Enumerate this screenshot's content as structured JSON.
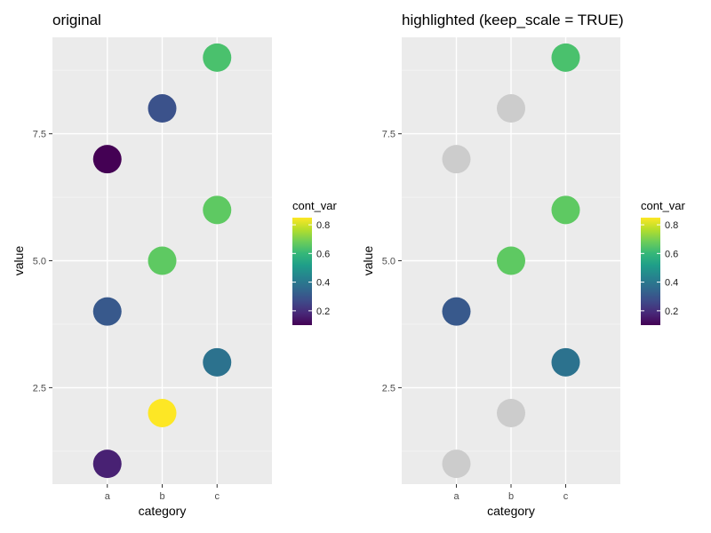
{
  "chart_data": [
    {
      "type": "scatter",
      "title": "original",
      "xlabel": "category",
      "ylabel": "value",
      "categories": [
        "a",
        "b",
        "c"
      ],
      "yticks": [
        2.5,
        5.0,
        7.5
      ],
      "ytick_labels": [
        "2.5",
        "5.0",
        "7.5"
      ],
      "ylim": [
        0.6,
        9.4
      ],
      "grid": true,
      "color_var": "cont_var",
      "legend": {
        "title": "cont_var",
        "position": "right",
        "ticks": [
          0.2,
          0.4,
          0.6,
          0.8
        ],
        "tick_labels": [
          "0.2",
          "0.4",
          "0.6",
          "0.8"
        ],
        "range": [
          0.1,
          0.85
        ]
      },
      "points": [
        {
          "x": "a",
          "y": 1,
          "color_value": 0.15,
          "color": "#482173"
        },
        {
          "x": "a",
          "y": 4,
          "color_value": 0.37,
          "color": "#38598C"
        },
        {
          "x": "a",
          "y": 7,
          "color_value": 0.1,
          "color": "#440154"
        },
        {
          "x": "b",
          "y": 2,
          "color_value": 0.85,
          "color": "#FDE725"
        },
        {
          "x": "b",
          "y": 5,
          "color_value": 0.67,
          "color": "#5EC962"
        },
        {
          "x": "b",
          "y": 8,
          "color_value": 0.35,
          "color": "#3B528B"
        },
        {
          "x": "c",
          "y": 3,
          "color_value": 0.45,
          "color": "#2C728E"
        },
        {
          "x": "c",
          "y": 6,
          "color_value": 0.66,
          "color": "#5EC962"
        },
        {
          "x": "c",
          "y": 9,
          "color_value": 0.63,
          "color": "#4AC16D"
        }
      ]
    },
    {
      "type": "scatter",
      "title": "highlighted (keep_scale = TRUE)",
      "xlabel": "category",
      "ylabel": "value",
      "categories": [
        "a",
        "b",
        "c"
      ],
      "yticks": [
        2.5,
        5.0,
        7.5
      ],
      "ytick_labels": [
        "2.5",
        "5.0",
        "7.5"
      ],
      "ylim": [
        0.6,
        9.4
      ],
      "grid": true,
      "color_var": "cont_var",
      "legend": {
        "title": "cont_var",
        "position": "right",
        "ticks": [
          0.2,
          0.4,
          0.6,
          0.8
        ],
        "tick_labels": [
          "0.2",
          "0.4",
          "0.6",
          "0.8"
        ],
        "range": [
          0.1,
          0.85
        ]
      },
      "highlight_gray": "#CCCCCC",
      "points": [
        {
          "x": "a",
          "y": 1,
          "color_value": 0.15,
          "highlighted": false,
          "color": "#CCCCCC"
        },
        {
          "x": "a",
          "y": 4,
          "color_value": 0.37,
          "highlighted": true,
          "color": "#38598C"
        },
        {
          "x": "a",
          "y": 7,
          "color_value": 0.1,
          "highlighted": false,
          "color": "#CCCCCC"
        },
        {
          "x": "b",
          "y": 2,
          "color_value": 0.85,
          "highlighted": false,
          "color": "#CCCCCC"
        },
        {
          "x": "b",
          "y": 5,
          "color_value": 0.67,
          "highlighted": true,
          "color": "#5EC962"
        },
        {
          "x": "b",
          "y": 8,
          "color_value": 0.35,
          "highlighted": false,
          "color": "#CCCCCC"
        },
        {
          "x": "c",
          "y": 3,
          "color_value": 0.45,
          "highlighted": true,
          "color": "#2C728E"
        },
        {
          "x": "c",
          "y": 6,
          "color_value": 0.66,
          "highlighted": true,
          "color": "#5EC962"
        },
        {
          "x": "c",
          "y": 9,
          "color_value": 0.63,
          "highlighted": true,
          "color": "#4AC16D"
        }
      ]
    }
  ],
  "colors": {
    "panel_bg": "#EBEBEB",
    "grid_major": "#FFFFFF",
    "grid_minor": "#F5F5F5",
    "viridis": [
      "#440154",
      "#482878",
      "#3E4A89",
      "#31688E",
      "#26828E",
      "#1F9E89",
      "#35B779",
      "#6DCD59",
      "#B4DE2C",
      "#FDE725"
    ]
  }
}
